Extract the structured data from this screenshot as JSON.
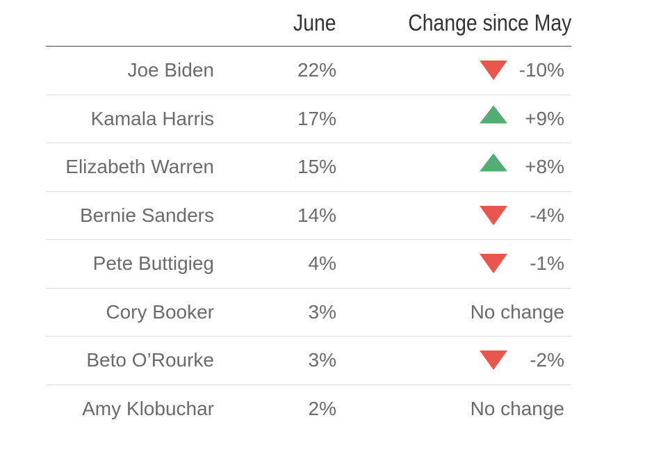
{
  "chart_data": {
    "type": "table",
    "columns": [
      "",
      "June",
      "Change since May"
    ],
    "rows": [
      {
        "name": "Joe Biden",
        "june": "22%",
        "change": "-10%",
        "direction": "down"
      },
      {
        "name": "Kamala Harris",
        "june": "17%",
        "change": "+9%",
        "direction": "up"
      },
      {
        "name": "Elizabeth Warren",
        "june": "15%",
        "change": "+8%",
        "direction": "up"
      },
      {
        "name": "Bernie Sanders",
        "june": "14%",
        "change": "-4%",
        "direction": "down"
      },
      {
        "name": "Pete Buttigieg",
        "june": "4%",
        "change": "-1%",
        "direction": "down"
      },
      {
        "name": "Cory Booker",
        "june": "3%",
        "change": "No change",
        "direction": "none"
      },
      {
        "name": "Beto O’Rourke",
        "june": "3%",
        "change": "-2%",
        "direction": "down"
      },
      {
        "name": "Amy Klobuchar",
        "june": "2%",
        "change": "No change",
        "direction": "none"
      }
    ],
    "colors": {
      "up": "#53ad72",
      "down": "#e8564d"
    }
  }
}
